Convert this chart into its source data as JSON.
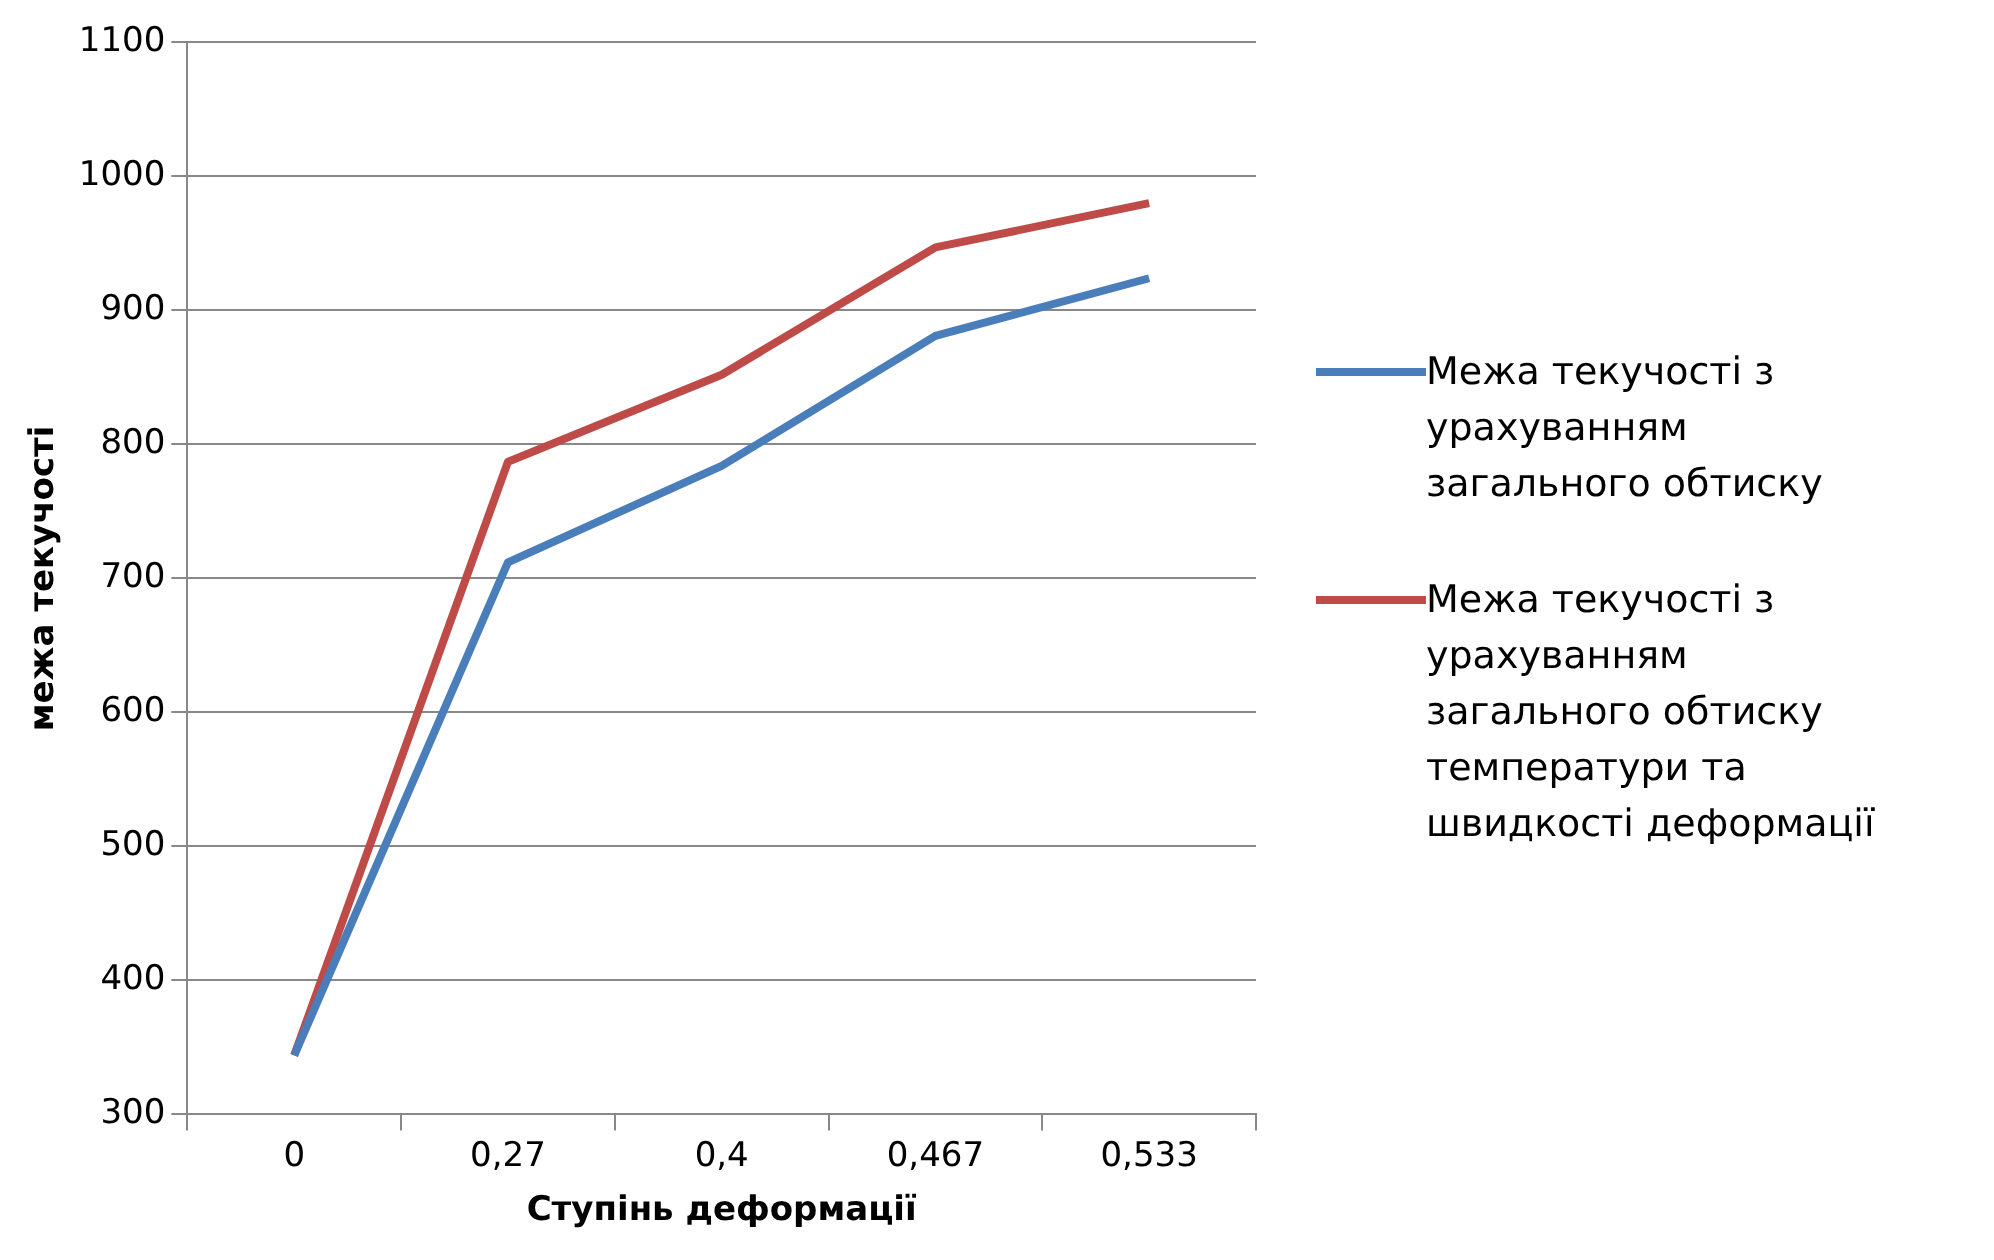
{
  "chart_data": {
    "type": "line",
    "xlabel": "Ступінь деформації",
    "ylabel": "межа текучості",
    "categories": [
      "0",
      "0,27",
      "0,4",
      "0,467",
      "0,533"
    ],
    "series": [
      {
        "name": "Межа текучості з урахуванням загального обтиску",
        "color": "#4a7ebb",
        "values": [
          344,
          712,
          784,
          881,
          924
        ]
      },
      {
        "name": "Межа текучості з урахуванням загального обтиску температури та швидкості деформації",
        "color": "#be4b48",
        "values": [
          344,
          787,
          852,
          947,
          980
        ]
      }
    ],
    "ylim": [
      300,
      1100
    ],
    "yticks": [
      300,
      400,
      500,
      600,
      700,
      800,
      900,
      1000,
      1100
    ],
    "grid": "y",
    "legend": "right",
    "marker": "none",
    "line_style": "solid"
  }
}
